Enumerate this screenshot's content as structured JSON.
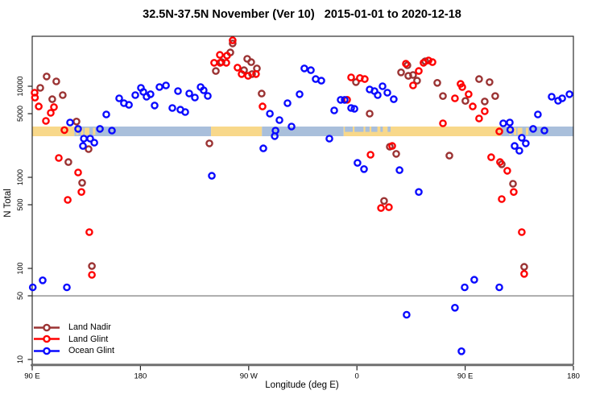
{
  "title": "32.5N-37.5N November (Ver 10)   2015-01-01 to 2020-12-18",
  "chart_data": {
    "type": "scatter",
    "title": "32.5N-37.5N November (Ver 10)   2015-01-01 to 2020-12-18",
    "xlabel": "Longitude (deg E)",
    "ylabel": "N Total",
    "x_axis": {
      "range": [
        90,
        540
      ],
      "ticks": [
        90,
        180,
        270,
        360,
        450,
        540
      ],
      "tick_labels": [
        "90 E",
        "180",
        "90 W",
        "0",
        "90 E",
        "180"
      ]
    },
    "y_axis": {
      "scale": "log10",
      "ticks": [
        10,
        50,
        100,
        500,
        1000,
        5000,
        10000
      ],
      "range": [
        9,
        35000
      ]
    },
    "reference_line_value": 50,
    "grid": "off",
    "legend_position": "bottom-left",
    "map_band": {
      "center_value": 3000,
      "land_color": "#F8D88A",
      "ocean_color": "#A9BFDB",
      "base_segments": [
        {
          "from": 90,
          "to": 125,
          "type": "land"
        },
        {
          "from": 125,
          "to": 238.7,
          "type": "ocean"
        },
        {
          "from": 238.7,
          "to": 281,
          "type": "land"
        },
        {
          "from": 281,
          "to": 349,
          "type": "ocean"
        },
        {
          "from": 349,
          "to": 480,
          "type": "land"
        },
        {
          "from": 480,
          "to": 540,
          "type": "ocean"
        }
      ],
      "islands": [
        {
          "from": 126.5,
          "to": 128.5
        },
        {
          "from": 130.5,
          "to": 132.5
        },
        {
          "from": 133.5,
          "to": 137.5
        },
        {
          "from": 140.5,
          "to": 142.5
        },
        {
          "from": 486.5,
          "to": 488.5
        },
        {
          "from": 490.5,
          "to": 492.5
        },
        {
          "from": 493.5,
          "to": 497.5
        },
        {
          "from": 500.5,
          "to": 502.5
        }
      ],
      "seas": [
        {
          "from": 350,
          "to": 356.5
        },
        {
          "from": 358,
          "to": 365.5
        },
        {
          "from": 367,
          "to": 370.5
        },
        {
          "from": 372,
          "to": 377
        },
        {
          "from": 379.5,
          "to": 381.5
        },
        {
          "from": 385.5,
          "to": 388
        }
      ]
    },
    "series": [
      {
        "name": "Land Nadir",
        "color": "#9B3333",
        "points": [
          [
            102,
            12800
          ],
          [
            110,
            11300
          ],
          [
            96.7,
            9600
          ],
          [
            115.4,
            8000
          ],
          [
            106.7,
            7200
          ],
          [
            126.8,
            4100
          ],
          [
            136.9,
            2040
          ],
          [
            120.1,
            1470
          ],
          [
            131.5,
            870
          ],
          [
            139.6,
            106
          ],
          [
            256.7,
            29500
          ],
          [
            242.7,
            14700
          ],
          [
            247.4,
            18400
          ],
          [
            254.7,
            23500
          ],
          [
            268.8,
            20000
          ],
          [
            272.1,
            18400
          ],
          [
            276.8,
            15700
          ],
          [
            272.8,
            13600
          ],
          [
            266.1,
            15000
          ],
          [
            280.8,
            8300
          ],
          [
            359.2,
            11100
          ],
          [
            370.6,
            5000
          ],
          [
            237.3,
            2360
          ],
          [
            387.3,
            2170
          ],
          [
            382.6,
            550
          ],
          [
            402,
            17000
          ],
          [
            396.7,
            14200
          ],
          [
            402.7,
            13000
          ],
          [
            406.7,
            13300
          ],
          [
            410,
            11500
          ],
          [
            416.8,
            18800
          ],
          [
            426.8,
            10900
          ],
          [
            431.5,
            7800
          ],
          [
            461.6,
            12000
          ],
          [
            470.3,
            11100
          ],
          [
            475,
            7800
          ],
          [
            466.3,
            6800
          ],
          [
            450.2,
            6900
          ],
          [
            392.7,
            1810
          ],
          [
            436.9,
            1730
          ],
          [
            480.4,
            1390
          ],
          [
            489.8,
            850
          ],
          [
            499.1,
            104
          ]
        ]
      },
      {
        "name": "Land Glint",
        "color": "#FF0000",
        "points": [
          [
            92,
            8500
          ],
          [
            92.3,
            7500
          ],
          [
            95.4,
            6000
          ],
          [
            108.1,
            5900
          ],
          [
            105.4,
            5100
          ],
          [
            101.4,
            4160
          ],
          [
            116.8,
            3300
          ],
          [
            112.1,
            1630
          ],
          [
            128.2,
            1130
          ],
          [
            130.9,
            690
          ],
          [
            119.5,
            565
          ],
          [
            137.5,
            250
          ],
          [
            139.6,
            85
          ],
          [
            256.7,
            31900
          ],
          [
            246,
            22100
          ],
          [
            252,
            21700
          ],
          [
            241.3,
            18100
          ],
          [
            246.3,
            18100
          ],
          [
            251.4,
            18100
          ],
          [
            260.7,
            16000
          ],
          [
            264.1,
            13600
          ],
          [
            269.5,
            13000
          ],
          [
            276.1,
            13600
          ],
          [
            281.5,
            6000
          ],
          [
            355.2,
            12500
          ],
          [
            362.5,
            12300
          ],
          [
            366.5,
            12000
          ],
          [
            351.8,
            7100
          ],
          [
            371.3,
            1770
          ],
          [
            389.3,
            2210
          ],
          [
            380,
            460
          ],
          [
            386.6,
            470
          ],
          [
            400.7,
            17700
          ],
          [
            411.4,
            14700
          ],
          [
            415.4,
            18100
          ],
          [
            419.5,
            19200
          ],
          [
            422.8,
            18400
          ],
          [
            406.7,
            10200
          ],
          [
            446.2,
            10600
          ],
          [
            447.6,
            9800
          ],
          [
            441.5,
            7360
          ],
          [
            452.9,
            8170
          ],
          [
            456.3,
            6000
          ],
          [
            466.3,
            5320
          ],
          [
            461.6,
            4430
          ],
          [
            431.5,
            3920
          ],
          [
            478.4,
            3190
          ],
          [
            471.6,
            1660
          ],
          [
            479,
            1470
          ],
          [
            485,
            1180
          ],
          [
            490.4,
            690
          ],
          [
            480.4,
            577
          ],
          [
            497.1,
            250
          ],
          [
            499.1,
            87
          ]
        ]
      },
      {
        "name": "Ocean Glint",
        "color": "#0A0AFF",
        "points": [
          [
            121.5,
            4000
          ],
          [
            128.2,
            3400
          ],
          [
            132.9,
            2660
          ],
          [
            138.2,
            2660
          ],
          [
            141.6,
            2400
          ],
          [
            132.2,
            2210
          ],
          [
            146.3,
            3400
          ],
          [
            151.6,
            4900
          ],
          [
            156.3,
            3260
          ],
          [
            162.3,
            7360
          ],
          [
            166.3,
            6520
          ],
          [
            170.4,
            6250
          ],
          [
            175.7,
            8000
          ],
          [
            180.4,
            9600
          ],
          [
            182.4,
            8670
          ],
          [
            185.1,
            7670
          ],
          [
            188.4,
            8170
          ],
          [
            191.8,
            6140
          ],
          [
            195.8,
            9790
          ],
          [
            201.2,
            10200
          ],
          [
            206.5,
            5770
          ],
          [
            211.2,
            8850
          ],
          [
            213.2,
            5530
          ],
          [
            217.2,
            5210
          ],
          [
            220.6,
            8320
          ],
          [
            225.3,
            7520
          ],
          [
            230,
            9790
          ],
          [
            232.6,
            9040
          ],
          [
            236,
            7830
          ],
          [
            239.3,
            1040
          ],
          [
            316.3,
            15700
          ],
          [
            321.7,
            15000
          ],
          [
            325.7,
            12000
          ],
          [
            330.4,
            11500
          ],
          [
            312.3,
            8170
          ],
          [
            302.3,
            6520
          ],
          [
            287.6,
            5000
          ],
          [
            295.6,
            4250
          ],
          [
            305.6,
            3610
          ],
          [
            292.3,
            3260
          ],
          [
            291.6,
            2830
          ],
          [
            282.2,
            2080
          ],
          [
            337.1,
            2660
          ],
          [
            341.1,
            5430
          ],
          [
            346.5,
            7080
          ],
          [
            349.8,
            7080
          ],
          [
            355.2,
            5770
          ],
          [
            357.9,
            5650
          ],
          [
            370.6,
            9220
          ],
          [
            374.6,
            8850
          ],
          [
            377.3,
            8000
          ],
          [
            381.3,
            10000
          ],
          [
            385.3,
            8490
          ],
          [
            390.6,
            7210
          ],
          [
            360.5,
            1440
          ],
          [
            365.9,
            1230
          ],
          [
            395.4,
            1200
          ],
          [
            411.4,
            690
          ],
          [
            521.9,
            7670
          ],
          [
            527.3,
            6930
          ],
          [
            530.7,
            7360
          ],
          [
            536.7,
            8170
          ],
          [
            510.5,
            4900
          ],
          [
            481.7,
            3920
          ],
          [
            487.1,
            4000
          ],
          [
            487.5,
            3330
          ],
          [
            506.5,
            3400
          ],
          [
            515.9,
            3260
          ],
          [
            497.1,
            2720
          ],
          [
            500.4,
            2360
          ],
          [
            491.1,
            2210
          ],
          [
            495.1,
            1960
          ],
          [
            98.7,
            74
          ],
          [
            90.5,
            62
          ],
          [
            118.8,
            62
          ],
          [
            457.6,
            75
          ],
          [
            449.6,
            62
          ],
          [
            478.4,
            62
          ],
          [
            441.5,
            37
          ],
          [
            401.3,
            31
          ],
          [
            446.9,
            12.3
          ]
        ]
      }
    ]
  },
  "legend": {
    "items": [
      "Land Nadir",
      "Land Glint",
      "Ocean Glint"
    ]
  }
}
